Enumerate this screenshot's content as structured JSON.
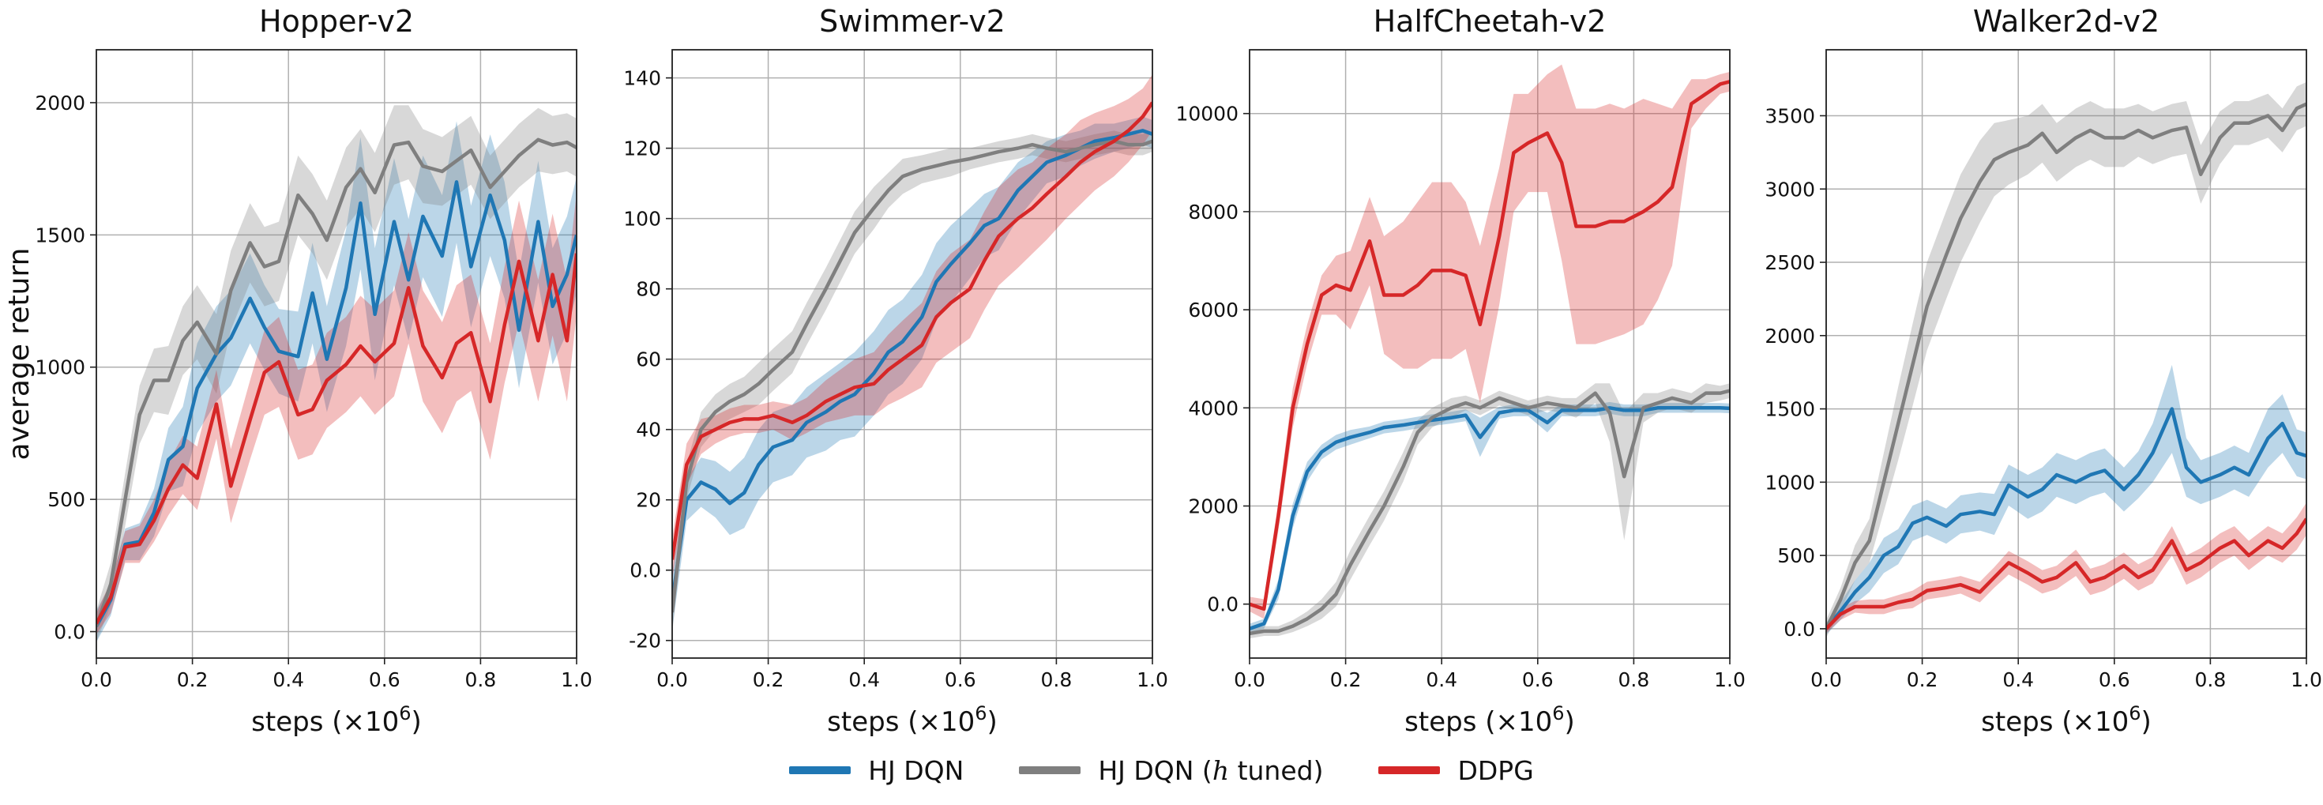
{
  "figure": {
    "ylabel": "average return",
    "xlabel_main": "steps (×10",
    "xlabel_exp": "6",
    "xlabel_close": ")"
  },
  "legend": [
    {
      "label_pre": "HJ DQN",
      "label_italic": "",
      "label_post": "",
      "color": "#1f77b4"
    },
    {
      "label_pre": "HJ DQN (",
      "label_italic": "h",
      "label_post": " tuned)",
      "color": "#7f7f7f"
    },
    {
      "label_pre": "DDPG",
      "label_italic": "",
      "label_post": "",
      "color": "#d62728"
    }
  ],
  "chart_data": [
    {
      "type": "line",
      "title": "Hopper-v2",
      "xlim": [
        0,
        1.0
      ],
      "ylim": [
        -100,
        2200
      ],
      "xticks": [
        0.0,
        0.2,
        0.4,
        0.6,
        0.8,
        1.0
      ],
      "yticks": [
        0,
        500,
        1000,
        1500,
        2000
      ],
      "grid": true,
      "x": [
        0,
        0.03,
        0.06,
        0.09,
        0.12,
        0.15,
        0.18,
        0.21,
        0.25,
        0.28,
        0.32,
        0.35,
        0.38,
        0.42,
        0.45,
        0.48,
        0.52,
        0.55,
        0.58,
        0.62,
        0.65,
        0.68,
        0.72,
        0.75,
        0.78,
        0.82,
        0.85,
        0.88,
        0.92,
        0.95,
        0.98,
        1.0
      ],
      "series": [
        {
          "name": "HJ DQN",
          "color": "#1f77b4",
          "values": [
            20,
            120,
            330,
            340,
            450,
            650,
            700,
            920,
            1050,
            1110,
            1260,
            1150,
            1060,
            1040,
            1280,
            1030,
            1300,
            1620,
            1200,
            1550,
            1330,
            1570,
            1420,
            1700,
            1380,
            1650,
            1480,
            1140,
            1550,
            1230,
            1350,
            1500
          ],
          "band": [
            60,
            60,
            60,
            70,
            90,
            120,
            150,
            170,
            180,
            180,
            170,
            160,
            160,
            170,
            190,
            200,
            220,
            250,
            250,
            240,
            230,
            230,
            230,
            230,
            230,
            230,
            220,
            220,
            230,
            220,
            220,
            220
          ]
        },
        {
          "name": "HJ DQN (h tuned)",
          "color": "#7f7f7f",
          "values": [
            20,
            180,
            500,
            820,
            950,
            950,
            1100,
            1170,
            1050,
            1290,
            1470,
            1380,
            1400,
            1650,
            1580,
            1480,
            1680,
            1750,
            1660,
            1840,
            1850,
            1760,
            1740,
            1780,
            1820,
            1680,
            1740,
            1800,
            1860,
            1840,
            1850,
            1830
          ],
          "band": [
            60,
            80,
            100,
            110,
            120,
            130,
            130,
            140,
            150,
            150,
            150,
            150,
            150,
            150,
            150,
            150,
            150,
            150,
            150,
            150,
            140,
            140,
            130,
            130,
            130,
            120,
            120,
            120,
            120,
            110,
            110,
            110
          ]
        },
        {
          "name": "DDPG",
          "color": "#d62728",
          "values": [
            30,
            130,
            320,
            330,
            420,
            540,
            630,
            580,
            860,
            550,
            800,
            980,
            1020,
            820,
            840,
            950,
            1010,
            1080,
            1020,
            1090,
            1300,
            1080,
            960,
            1090,
            1130,
            870,
            1160,
            1400,
            1100,
            1350,
            1100,
            1430
          ],
          "band": [
            40,
            60,
            60,
            70,
            80,
            100,
            110,
            120,
            130,
            140,
            150,
            160,
            170,
            170,
            170,
            180,
            180,
            190,
            200,
            200,
            210,
            210,
            210,
            220,
            220,
            220,
            220,
            230,
            230,
            230,
            230,
            230
          ]
        }
      ]
    },
    {
      "type": "line",
      "title": "Swimmer-v2",
      "xlim": [
        0,
        1.0
      ],
      "ylim": [
        -25,
        148
      ],
      "xticks": [
        0.0,
        0.2,
        0.4,
        0.6,
        0.8,
        1.0
      ],
      "yticks": [
        -20,
        0,
        20,
        40,
        60,
        80,
        100,
        120,
        140
      ],
      "grid": true,
      "x": [
        0,
        0.03,
        0.06,
        0.09,
        0.12,
        0.15,
        0.18,
        0.21,
        0.25,
        0.28,
        0.32,
        0.35,
        0.38,
        0.42,
        0.45,
        0.48,
        0.52,
        0.55,
        0.58,
        0.62,
        0.65,
        0.68,
        0.72,
        0.75,
        0.78,
        0.82,
        0.85,
        0.88,
        0.92,
        0.95,
        0.98,
        1.0
      ],
      "series": [
        {
          "name": "HJ DQN",
          "color": "#1f77b4",
          "values": [
            -9,
            20,
            25,
            23,
            19,
            22,
            30,
            35,
            37,
            42,
            45,
            48,
            50,
            56,
            62,
            65,
            72,
            82,
            87,
            93,
            98,
            100,
            108,
            112,
            116,
            118,
            120,
            122,
            123,
            124,
            125,
            124
          ],
          "band": [
            8,
            6,
            7,
            8,
            9,
            10,
            10,
            10,
            10,
            10,
            11,
            11,
            12,
            12,
            12,
            12,
            12,
            11,
            11,
            10,
            9,
            9,
            8,
            7,
            6,
            6,
            5,
            5,
            4,
            4,
            4,
            4
          ]
        },
        {
          "name": "HJ DQN (h tuned)",
          "color": "#7f7f7f",
          "values": [
            -12,
            25,
            40,
            45,
            48,
            50,
            53,
            57,
            62,
            70,
            80,
            88,
            96,
            103,
            108,
            112,
            114,
            115,
            116,
            117,
            118,
            119,
            120,
            121,
            120,
            119,
            120,
            121,
            122,
            121,
            121,
            122
          ],
          "band": [
            6,
            5,
            5,
            5,
            5,
            5,
            6,
            6,
            6,
            6,
            6,
            6,
            6,
            6,
            5,
            5,
            4,
            4,
            4,
            3,
            3,
            3,
            3,
            3,
            3,
            3,
            3,
            3,
            3,
            3,
            3,
            3
          ]
        },
        {
          "name": "DDPG",
          "color": "#d62728",
          "values": [
            3,
            30,
            38,
            40,
            42,
            43,
            43,
            44,
            42,
            44,
            48,
            50,
            52,
            53,
            57,
            60,
            64,
            72,
            76,
            80,
            88,
            95,
            100,
            103,
            107,
            112,
            116,
            119,
            122,
            125,
            129,
            133
          ],
          "band": [
            6,
            6,
            5,
            4,
            4,
            4,
            4,
            4,
            5,
            5,
            6,
            7,
            8,
            9,
            10,
            11,
            12,
            13,
            14,
            14,
            14,
            14,
            14,
            13,
            13,
            12,
            12,
            11,
            10,
            9,
            8,
            8
          ]
        }
      ]
    },
    {
      "type": "line",
      "title": "HalfCheetah-v2",
      "xlim": [
        0,
        1.0
      ],
      "ylim": [
        -1100,
        11300
      ],
      "xticks": [
        0.0,
        0.2,
        0.4,
        0.6,
        0.8,
        1.0
      ],
      "yticks": [
        0,
        2000,
        4000,
        6000,
        8000,
        10000
      ],
      "grid": true,
      "x": [
        0,
        0.03,
        0.06,
        0.09,
        0.12,
        0.15,
        0.18,
        0.21,
        0.25,
        0.28,
        0.32,
        0.35,
        0.38,
        0.42,
        0.45,
        0.48,
        0.52,
        0.55,
        0.58,
        0.62,
        0.65,
        0.68,
        0.72,
        0.75,
        0.78,
        0.82,
        0.85,
        0.88,
        0.92,
        0.95,
        0.98,
        1.0
      ],
      "series": [
        {
          "name": "HJ DQN",
          "color": "#1f77b4",
          "values": [
            -500,
            -400,
            300,
            1800,
            2700,
            3100,
            3300,
            3400,
            3500,
            3600,
            3650,
            3700,
            3750,
            3800,
            3850,
            3400,
            3900,
            3950,
            3950,
            3700,
            3950,
            3950,
            3950,
            4000,
            3950,
            3950,
            4000,
            4000,
            4000,
            4000,
            4000,
            3990
          ],
          "band": [
            100,
            100,
            200,
            250,
            200,
            150,
            150,
            150,
            120,
            120,
            120,
            120,
            120,
            120,
            120,
            400,
            120,
            120,
            120,
            200,
            120,
            120,
            120,
            120,
            120,
            120,
            100,
            100,
            100,
            100,
            100,
            100
          ]
        },
        {
          "name": "HJ DQN (h tuned)",
          "color": "#7f7f7f",
          "values": [
            -600,
            -550,
            -550,
            -450,
            -300,
            -100,
            200,
            800,
            1500,
            2000,
            2800,
            3500,
            3800,
            4000,
            4100,
            4000,
            4200,
            4100,
            4000,
            4100,
            4050,
            4000,
            4300,
            3900,
            2600,
            4000,
            4100,
            4200,
            4100,
            4300,
            4300,
            4350
          ],
          "band": [
            100,
            100,
            100,
            120,
            150,
            200,
            250,
            300,
            300,
            300,
            300,
            250,
            200,
            200,
            150,
            150,
            150,
            150,
            150,
            150,
            150,
            200,
            200,
            600,
            1300,
            300,
            200,
            200,
            200,
            200,
            150,
            150
          ]
        },
        {
          "name": "DDPG",
          "color": "#d62728",
          "values": [
            0,
            -100,
            1800,
            4000,
            5300,
            6300,
            6500,
            6400,
            7400,
            6300,
            6300,
            6500,
            6800,
            6800,
            6700,
            5700,
            7500,
            9200,
            9400,
            9600,
            9000,
            7700,
            7700,
            7800,
            7800,
            8000,
            8200,
            8500,
            10200,
            10400,
            10600,
            10650
          ],
          "band": [
            150,
            200,
            300,
            400,
            400,
            400,
            600,
            800,
            900,
            1200,
            1500,
            1700,
            1800,
            1800,
            1500,
            1600,
            1400,
            1200,
            1000,
            1200,
            2000,
            2400,
            2400,
            2400,
            2300,
            2300,
            2000,
            1600,
            500,
            300,
            200,
            200
          ]
        }
      ]
    },
    {
      "type": "line",
      "title": "Walker2d-v2",
      "xlim": [
        0,
        1.0
      ],
      "ylim": [
        -200,
        3950
      ],
      "xticks": [
        0.0,
        0.2,
        0.4,
        0.6,
        0.8,
        1.0
      ],
      "yticks": [
        0,
        500,
        1000,
        1500,
        2000,
        2500,
        3000,
        3500
      ],
      "grid": true,
      "x": [
        0,
        0.03,
        0.06,
        0.09,
        0.12,
        0.15,
        0.18,
        0.21,
        0.25,
        0.28,
        0.32,
        0.35,
        0.38,
        0.42,
        0.45,
        0.48,
        0.52,
        0.55,
        0.58,
        0.62,
        0.65,
        0.68,
        0.72,
        0.75,
        0.78,
        0.82,
        0.85,
        0.88,
        0.92,
        0.95,
        0.98,
        1.0
      ],
      "series": [
        {
          "name": "HJ DQN",
          "color": "#1f77b4",
          "values": [
            0,
            120,
            250,
            350,
            500,
            560,
            720,
            760,
            700,
            780,
            800,
            780,
            980,
            900,
            950,
            1050,
            1000,
            1050,
            1080,
            950,
            1050,
            1200,
            1500,
            1100,
            1000,
            1050,
            1100,
            1050,
            1300,
            1400,
            1200,
            1180
          ],
          "band": [
            40,
            60,
            80,
            100,
            120,
            120,
            120,
            120,
            120,
            130,
            130,
            140,
            140,
            150,
            150,
            150,
            150,
            150,
            150,
            150,
            160,
            200,
            300,
            200,
            150,
            150,
            150,
            150,
            200,
            200,
            160,
            160
          ]
        },
        {
          "name": "HJ DQN (h tuned)",
          "color": "#7f7f7f",
          "values": [
            0,
            200,
            450,
            600,
            1000,
            1400,
            1800,
            2200,
            2550,
            2800,
            3050,
            3200,
            3250,
            3300,
            3380,
            3250,
            3350,
            3400,
            3350,
            3350,
            3400,
            3350,
            3400,
            3420,
            3100,
            3350,
            3450,
            3450,
            3500,
            3400,
            3550,
            3580
          ],
          "band": [
            60,
            80,
            120,
            150,
            200,
            250,
            280,
            300,
            300,
            300,
            280,
            250,
            220,
            200,
            200,
            200,
            200,
            200,
            200,
            200,
            180,
            180,
            180,
            180,
            200,
            180,
            150,
            150,
            150,
            150,
            150,
            150
          ]
        },
        {
          "name": "DDPG",
          "color": "#d62728",
          "values": [
            0,
            100,
            150,
            150,
            150,
            180,
            200,
            260,
            280,
            300,
            250,
            350,
            450,
            380,
            320,
            350,
            450,
            320,
            350,
            430,
            350,
            400,
            600,
            400,
            450,
            550,
            600,
            500,
            600,
            550,
            650,
            750
          ],
          "band": [
            30,
            40,
            40,
            50,
            50,
            50,
            60,
            60,
            60,
            60,
            70,
            70,
            80,
            80,
            80,
            80,
            90,
            90,
            90,
            90,
            90,
            90,
            100,
            100,
            100,
            100,
            100,
            100,
            100,
            100,
            110,
            110
          ]
        }
      ]
    }
  ]
}
